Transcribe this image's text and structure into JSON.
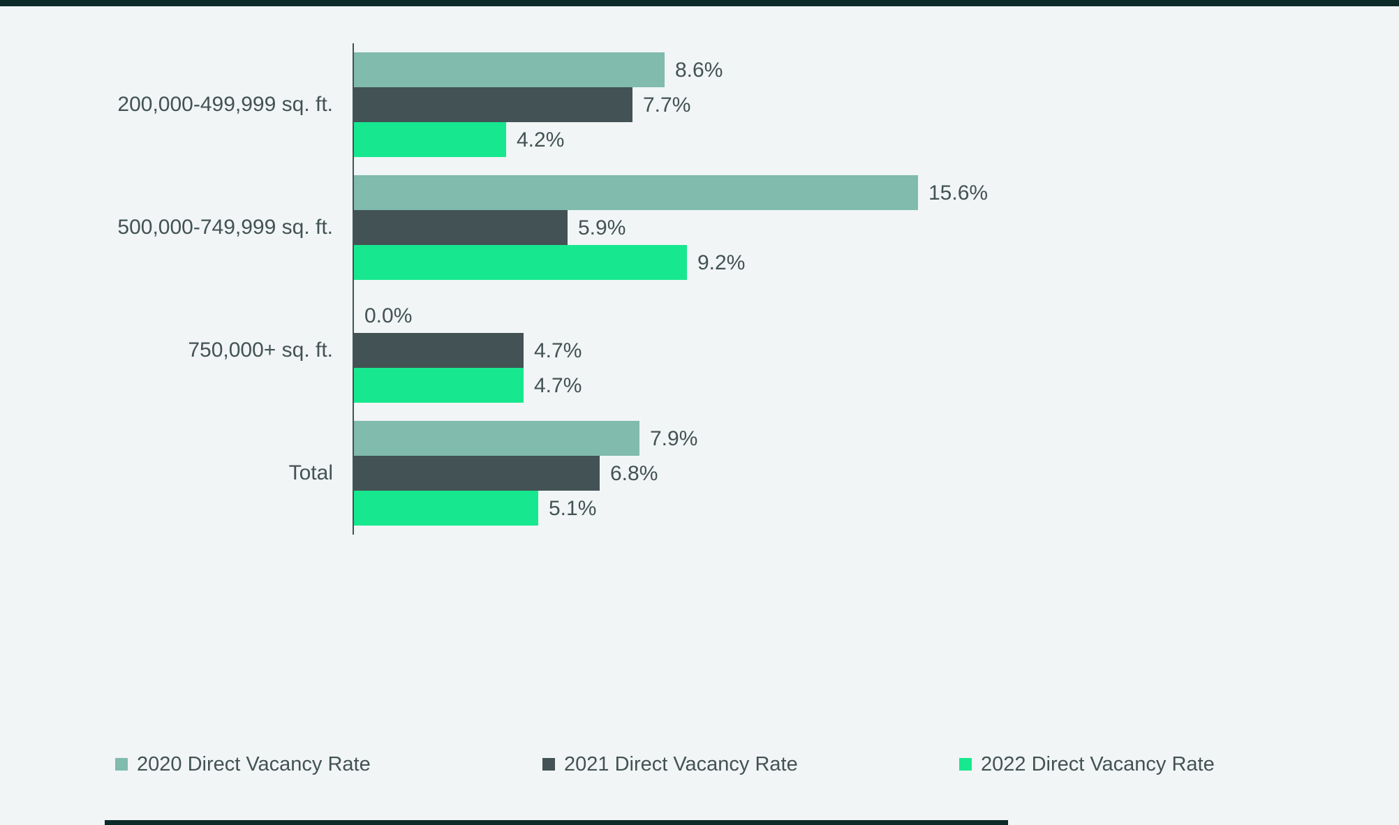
{
  "page": {
    "background_color": "#F1F5F5",
    "top_rule_color": "#0C2A28",
    "bottom_rule_color": "#0C2A28",
    "text_color": "#435254"
  },
  "chart_data": {
    "type": "bar",
    "orientation": "horizontal",
    "title": "",
    "xlabel": "",
    "ylabel": "",
    "grid": false,
    "xlim": [
      0,
      16.5
    ],
    "legend_position": "bottom",
    "categories": [
      "200,000-499,999 sq. ft.",
      "500,000-749,999 sq. ft.",
      "750,000+ sq. ft.",
      "Total"
    ],
    "series": [
      {
        "name": "2020 Direct Vacancy Rate",
        "color": "#80BBAD",
        "values": [
          8.6,
          15.6,
          0.0,
          7.9
        ],
        "labels": [
          "8.6%",
          "15.6%",
          "0.0%",
          "7.9%"
        ]
      },
      {
        "name": "2021 Direct Vacancy Rate",
        "color": "#435254",
        "values": [
          7.7,
          5.9,
          4.7,
          6.8
        ],
        "labels": [
          "7.7%",
          "5.9%",
          "4.7%",
          "6.8%"
        ]
      },
      {
        "name": "2022 Direct Vacancy Rate",
        "color": "#17E88F",
        "values": [
          4.2,
          9.2,
          4.7,
          5.1
        ],
        "labels": [
          "4.2%",
          "9.2%",
          "4.7%",
          "5.1%"
        ]
      }
    ]
  }
}
